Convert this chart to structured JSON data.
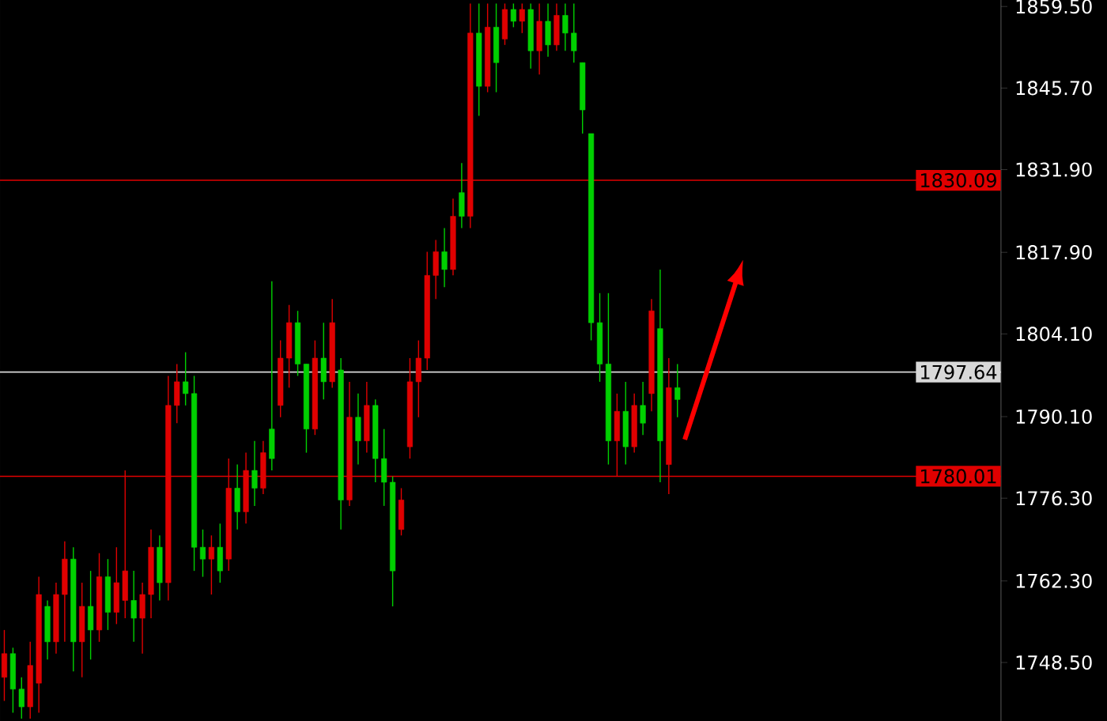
{
  "chart_data": {
    "type": "candlestick",
    "categories": [
      null,
      null,
      null,
      null,
      null,
      null,
      null,
      null,
      null,
      null,
      null,
      null,
      null,
      null,
      null,
      null,
      null,
      null,
      null,
      null,
      null,
      null,
      null,
      null,
      null,
      null,
      null,
      null,
      null,
      null,
      null,
      null,
      null,
      null,
      null,
      null,
      null,
      null,
      null,
      null,
      null,
      null,
      null,
      null,
      null,
      null,
      null,
      null,
      null,
      null,
      null,
      null,
      null,
      null,
      null,
      null,
      null,
      null,
      null,
      null,
      null,
      null,
      null,
      null,
      null,
      null,
      null,
      null,
      null,
      null,
      null,
      null,
      null,
      null,
      null,
      null,
      null,
      null,
      null,
      null,
      null,
      null,
      null,
      null,
      null,
      null,
      null,
      null,
      null,
      null,
      null,
      null,
      null,
      null,
      null,
      null,
      null,
      null,
      null,
      null,
      null,
      null,
      null,
      null,
      null,
      null,
      null,
      null,
      null,
      null,
      null,
      null,
      null,
      null,
      null,
      null
    ],
    "ohlc": [
      [
        1746,
        1754,
        1742,
        1750
      ],
      [
        1750,
        1751,
        1740,
        1744
      ],
      [
        1744,
        1746,
        1739,
        1741
      ],
      [
        1741,
        1752,
        1739,
        1748
      ],
      [
        1745,
        1763,
        1740,
        1760
      ],
      [
        1758,
        1759,
        1749,
        1752
      ],
      [
        1752,
        1762,
        1750,
        1760
      ],
      [
        1760,
        1769,
        1752,
        1766
      ],
      [
        1766,
        1768,
        1747,
        1752
      ],
      [
        1752,
        1762,
        1746,
        1758
      ],
      [
        1758,
        1764,
        1749,
        1754
      ],
      [
        1754,
        1767,
        1752,
        1763
      ],
      [
        1763,
        1766,
        1754,
        1757
      ],
      [
        1757,
        1768,
        1755,
        1762
      ],
      [
        1759,
        1781,
        1756,
        1764
      ],
      [
        1759,
        1764,
        1752,
        1756
      ],
      [
        1756,
        1762,
        1750,
        1760
      ],
      [
        1760,
        1771,
        1756,
        1768
      ],
      [
        1768,
        1770,
        1759,
        1762
      ],
      [
        1762,
        1797,
        1759,
        1792
      ],
      [
        1792,
        1799,
        1789,
        1796
      ],
      [
        1796,
        1801,
        1792,
        1794
      ],
      [
        1794,
        1797,
        1764,
        1768
      ],
      [
        1768,
        1771,
        1763,
        1766
      ],
      [
        1766,
        1770,
        1760,
        1768
      ],
      [
        1768,
        1772,
        1762,
        1764
      ],
      [
        1766,
        1783,
        1764,
        1778
      ],
      [
        1778,
        1782,
        1771,
        1774
      ],
      [
        1774,
        1784,
        1772,
        1781
      ],
      [
        1781,
        1786,
        1775,
        1778
      ],
      [
        1778,
        1786,
        1777,
        1784
      ],
      [
        1788,
        1813,
        1781,
        1783
      ],
      [
        1792,
        1803,
        1790,
        1800
      ],
      [
        1800,
        1809,
        1795,
        1806
      ],
      [
        1806,
        1808,
        1797,
        1799
      ],
      [
        1799,
        1799,
        1784,
        1788
      ],
      [
        1788,
        1803,
        1787,
        1800
      ],
      [
        1800,
        1806,
        1793,
        1796
      ],
      [
        1796,
        1810,
        1795,
        1806
      ],
      [
        1798,
        1800,
        1771,
        1776
      ],
      [
        1776,
        1796,
        1775,
        1790
      ],
      [
        1790,
        1794,
        1782,
        1786
      ],
      [
        1786,
        1796,
        1784,
        1792
      ],
      [
        1792,
        1793,
        1779,
        1783
      ],
      [
        1783,
        1788,
        1775,
        1779
      ],
      [
        1779,
        1780,
        1758,
        1764
      ],
      [
        1771,
        1778,
        1770,
        1776
      ],
      [
        1785,
        1800,
        1783,
        1796
      ],
      [
        1796,
        1803,
        1790,
        1800
      ],
      [
        1800,
        1818,
        1798,
        1814
      ],
      [
        1814,
        1820,
        1810,
        1818
      ],
      [
        1818,
        1822,
        1812,
        1815
      ],
      [
        1815,
        1827,
        1814,
        1824
      ],
      [
        1828,
        1833,
        1822,
        1824
      ],
      [
        1824,
        1860,
        1822,
        1855
      ],
      [
        1855,
        1860,
        1841,
        1846
      ],
      [
        1846,
        1860,
        1845,
        1856
      ],
      [
        1856,
        1860,
        1845,
        1850
      ],
      [
        1854,
        1860,
        1853,
        1859
      ],
      [
        1859,
        1860,
        1856,
        1857
      ],
      [
        1857,
        1860,
        1855,
        1859
      ],
      [
        1859,
        1860,
        1849,
        1852
      ],
      [
        1852,
        1860,
        1848,
        1857
      ],
      [
        1857,
        1860,
        1851,
        1853
      ],
      [
        1853,
        1860,
        1852,
        1858
      ],
      [
        1858,
        1860,
        1852,
        1855
      ],
      [
        1855,
        1860,
        1850,
        1852
      ],
      [
        1850,
        1850,
        1838,
        1842
      ],
      [
        1838,
        1838,
        1803,
        1806
      ],
      [
        1806,
        1811,
        1796,
        1799
      ],
      [
        1799,
        1811,
        1782,
        1786
      ],
      [
        1786,
        1794,
        1780,
        1791
      ],
      [
        1791,
        1796,
        1782,
        1785
      ],
      [
        1785,
        1794,
        1784,
        1792
      ],
      [
        1792,
        1796,
        1787,
        1789
      ],
      [
        1794,
        1810,
        1791,
        1808
      ],
      [
        1805,
        1815,
        1779,
        1786
      ],
      [
        1782,
        1800,
        1777,
        1795
      ],
      [
        1795,
        1799,
        1790,
        1793
      ],
      null,
      null,
      null,
      null,
      null,
      null,
      null,
      null,
      null,
      null,
      null,
      null,
      null,
      null,
      null,
      null,
      null,
      null,
      null,
      null,
      null,
      null,
      null,
      null,
      null,
      null,
      null,
      null,
      null,
      null,
      null,
      null,
      null,
      null,
      null,
      null,
      null
    ],
    "colors": [
      "#e00000",
      "#00d000",
      "#00d000",
      "#e00000",
      "#e00000",
      "#00d000",
      "#e00000",
      "#e00000",
      "#00d000",
      "#e00000",
      "#00d000",
      "#e00000",
      "#00d000",
      "#e00000",
      "#e00000",
      "#00d000",
      "#e00000",
      "#e00000",
      "#00d000",
      "#e00000",
      "#e00000",
      "#00d000",
      "#00d000",
      "#00d000",
      "#e00000",
      "#00d000",
      "#e00000",
      "#00d000",
      "#e00000",
      "#00d000",
      "#e00000",
      "#00d000",
      "#e00000",
      "#e00000",
      "#00d000",
      "#00d000",
      "#e00000",
      "#00d000",
      "#e00000",
      "#00d000",
      "#e00000",
      "#00d000",
      "#e00000",
      "#00d000",
      "#00d000",
      "#00d000",
      "#e00000",
      "#e00000",
      "#e00000",
      "#e00000",
      "#e00000",
      "#00d000",
      "#e00000",
      "#00d000",
      "#e00000",
      "#00d000",
      "#e00000",
      "#00d000",
      "#e00000",
      "#00d000",
      "#e00000",
      "#00d000",
      "#e00000",
      "#00d000",
      "#e00000",
      "#00d000",
      "#00d000",
      "#00d000",
      "#00d000",
      "#00d000",
      "#00d000",
      "#e00000",
      "#00d000",
      "#e00000",
      "#00d000",
      "#e00000",
      "#00d000",
      "#e00000",
      "#00d000",
      null,
      null,
      null,
      null,
      null,
      null,
      null,
      null,
      null,
      null,
      null,
      null,
      null,
      null,
      null,
      null,
      null,
      null,
      null,
      null,
      null,
      null,
      null,
      null,
      null,
      null,
      null,
      null,
      null,
      null,
      null,
      null,
      null,
      null,
      null,
      null,
      null
    ],
    "ylim": [
      1738.6,
      1860.6
    ],
    "yticks": [
      {
        "value": 1748.5,
        "label": "1748.50"
      },
      {
        "value": 1762.3,
        "label": "1762.30"
      },
      {
        "value": 1776.3,
        "label": "1776.30"
      },
      {
        "value": 1790.1,
        "label": "1790.10"
      },
      {
        "value": 1804.1,
        "label": "1804.10"
      },
      {
        "value": 1817.9,
        "label": "1817.90"
      },
      {
        "value": 1831.9,
        "label": "1831.90"
      },
      {
        "value": 1845.7,
        "label": "1845.70"
      },
      {
        "value": 1859.5,
        "label": "1859.50"
      }
    ],
    "tick_labels": "y",
    "ref_lines": [
      {
        "axis": "y",
        "value": 1830.09,
        "label": "1830.09",
        "color": "#e00000"
      },
      {
        "axis": "y",
        "value": 1797.64,
        "label": "1797.64",
        "color": "#d8d8d8"
      },
      {
        "axis": "y",
        "value": 1780.01,
        "label": "1780.01",
        "color": "#e00000"
      }
    ]
  }
}
